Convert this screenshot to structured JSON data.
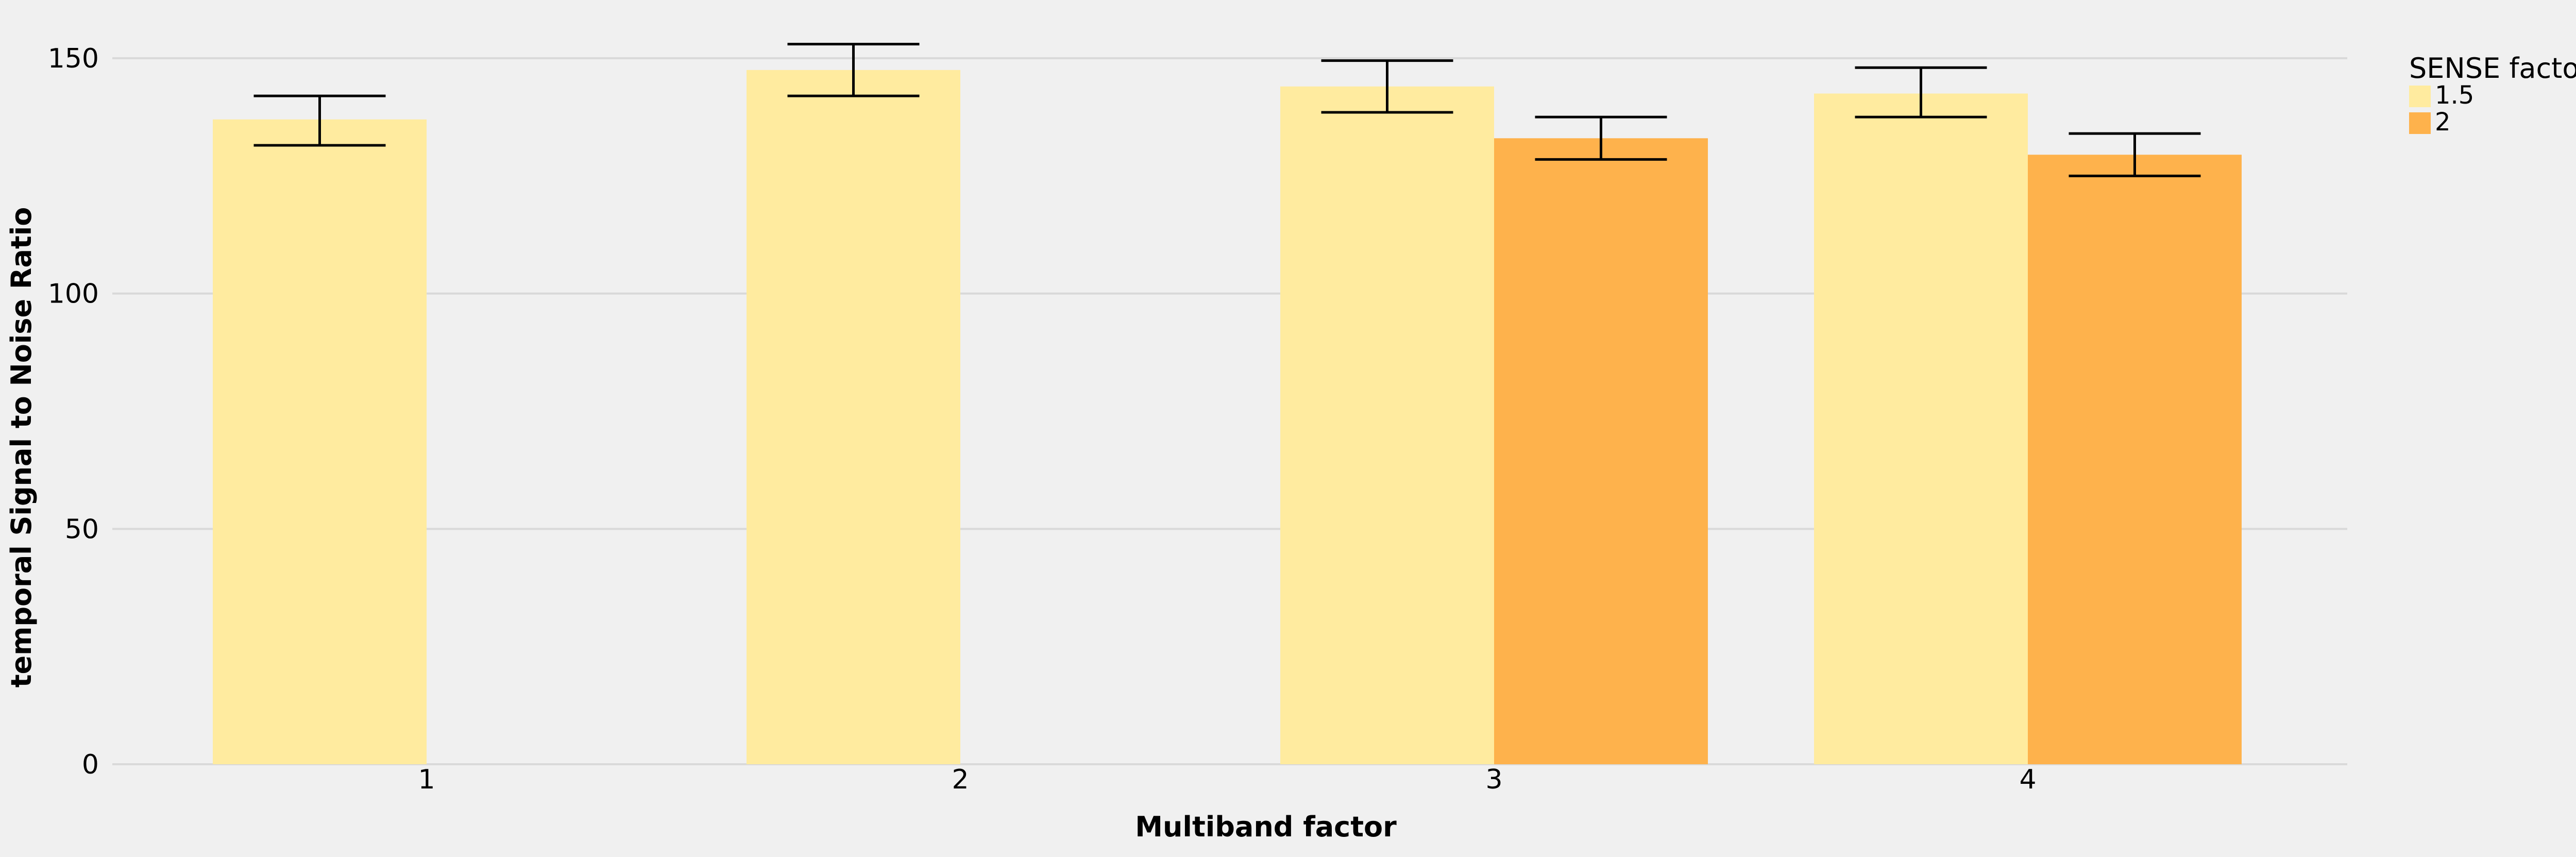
{
  "chart_data": {
    "type": "bar",
    "xlabel": "Multiband factor",
    "ylabel": "temporal Signal to Noise Ratio",
    "categories": [
      "1",
      "2",
      "3",
      "4"
    ],
    "ylim": [
      0,
      160
    ],
    "yticks": [
      0,
      50,
      100,
      150
    ],
    "grid": "horizontal",
    "legend": {
      "title": "SENSE factor",
      "placement": "right"
    },
    "series": [
      {
        "name": "1.5",
        "color": "#ffeb9f",
        "values": [
          137,
          147.5,
          144,
          142.5
        ],
        "err_low": [
          131.5,
          142,
          138.5,
          137.5
        ],
        "err_high": [
          142,
          153,
          149.5,
          148
        ]
      },
      {
        "name": "2",
        "color": "#feb24c",
        "values": [
          null,
          null,
          133,
          129.5
        ],
        "err_low": [
          null,
          null,
          128.5,
          125
        ],
        "err_high": [
          null,
          null,
          137.5,
          134
        ]
      }
    ],
    "errorbar_color": "#000000",
    "gridline_color": "#d9d9d9"
  }
}
